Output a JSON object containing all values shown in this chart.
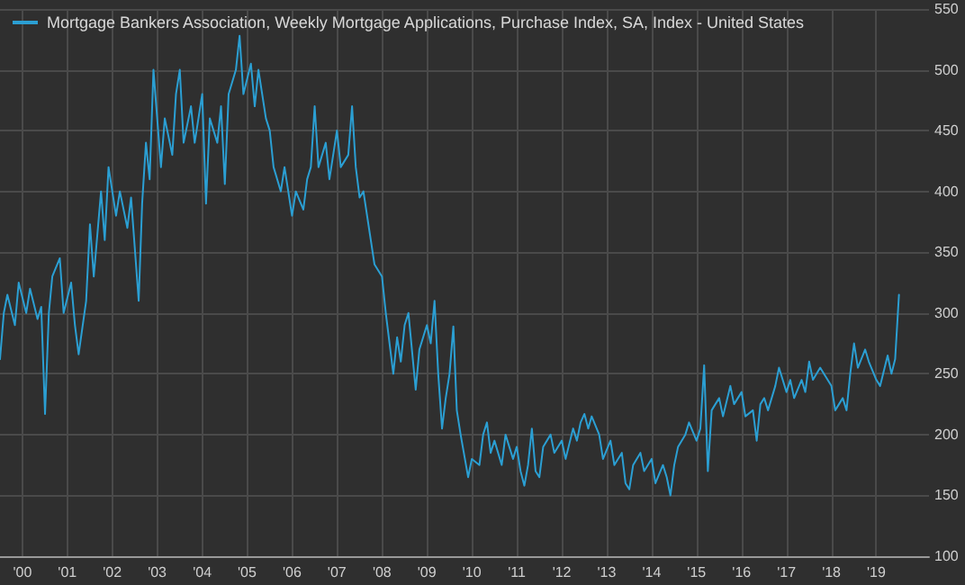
{
  "chart_data": {
    "type": "line",
    "legend": "top left",
    "grid": true,
    "marker": "none",
    "xlim": [
      "2000-01",
      "2020-09"
    ],
    "xticks": [
      {
        "value": "2000-07",
        "label": "'00"
      },
      {
        "value": "2001-07",
        "label": "'01"
      },
      {
        "value": "2002-07",
        "label": "'02"
      },
      {
        "value": "2003-07",
        "label": "'03"
      },
      {
        "value": "2004-07",
        "label": "'04"
      },
      {
        "value": "2005-07",
        "label": "'05"
      },
      {
        "value": "2006-07",
        "label": "'06"
      },
      {
        "value": "2007-07",
        "label": "'07"
      },
      {
        "value": "2008-07",
        "label": "'08"
      },
      {
        "value": "2009-07",
        "label": "'09"
      },
      {
        "value": "2010-07",
        "label": "'10"
      },
      {
        "value": "2011-07",
        "label": "'11"
      },
      {
        "value": "2012-07",
        "label": "'12"
      },
      {
        "value": "2013-07",
        "label": "'13"
      },
      {
        "value": "2014-07",
        "label": "'14"
      },
      {
        "value": "2015-07",
        "label": "'15"
      },
      {
        "value": "2016-07",
        "label": "'16"
      },
      {
        "value": "2017-07",
        "label": "'17"
      },
      {
        "value": "2018-07",
        "label": "'18"
      },
      {
        "value": "2019-07",
        "label": "'19"
      }
    ],
    "ylim": [
      100,
      550
    ],
    "yticks": [
      100,
      150,
      200,
      250,
      300,
      350,
      400,
      450,
      500,
      550
    ],
    "x": [
      "2000-01",
      "2000-02",
      "2000-03",
      "2000-05",
      "2000-06",
      "2000-08",
      "2000-09",
      "2000-11",
      "2000-12",
      "2001-01",
      "2001-02",
      "2001-03",
      "2001-05",
      "2001-06",
      "2001-08",
      "2001-09",
      "2001-10",
      "2001-12",
      "2002-01",
      "2002-02",
      "2002-04",
      "2002-05",
      "2002-06",
      "2002-08",
      "2002-09",
      "2002-11",
      "2002-12",
      "2003-02",
      "2003-03",
      "2003-04",
      "2003-05",
      "2003-06",
      "2003-08",
      "2003-09",
      "2003-11",
      "2003-12",
      "2004-01",
      "2004-02",
      "2004-04",
      "2004-05",
      "2004-07",
      "2004-08",
      "2004-09",
      "2004-11",
      "2004-12",
      "2005-01",
      "2005-02",
      "2005-04",
      "2005-05",
      "2005-06",
      "2005-08",
      "2005-09",
      "2005-10",
      "2005-12",
      "2006-01",
      "2006-02",
      "2006-04",
      "2006-05",
      "2006-07",
      "2006-08",
      "2006-10",
      "2006-11",
      "2006-12",
      "2007-01",
      "2007-02",
      "2007-04",
      "2007-05",
      "2007-07",
      "2007-08",
      "2007-10",
      "2007-11",
      "2007-12",
      "2008-01",
      "2008-02",
      "2008-04",
      "2008-05",
      "2008-07",
      "2008-08",
      "2008-10",
      "2008-11",
      "2008-12",
      "2009-01",
      "2009-02",
      "2009-04",
      "2009-05",
      "2009-07",
      "2009-08",
      "2009-09",
      "2009-10",
      "2009-11",
      "2009-12",
      "2010-01",
      "2010-02",
      "2010-03",
      "2010-04",
      "2010-06",
      "2010-07",
      "2010-09",
      "2010-10",
      "2010-11",
      "2010-12",
      "2011-01",
      "2011-03",
      "2011-04",
      "2011-06",
      "2011-07",
      "2011-08",
      "2011-09",
      "2011-10",
      "2011-11",
      "2011-12",
      "2012-01",
      "2012-02",
      "2012-04",
      "2012-05",
      "2012-07",
      "2012-08",
      "2012-10",
      "2012-11",
      "2012-12",
      "2013-01",
      "2013-02",
      "2013-03",
      "2013-05",
      "2013-06",
      "2013-08",
      "2013-09",
      "2013-11",
      "2013-12",
      "2014-01",
      "2014-02",
      "2014-04",
      "2014-05",
      "2014-07",
      "2014-08",
      "2014-10",
      "2014-11",
      "2014-12",
      "2015-01",
      "2015-02",
      "2015-04",
      "2015-05",
      "2015-07",
      "2015-08",
      "2015-09",
      "2015-10",
      "2015-11",
      "2015-12",
      "2016-01",
      "2016-02",
      "2016-04",
      "2016-05",
      "2016-07",
      "2016-08",
      "2016-10",
      "2016-11",
      "2016-12",
      "2017-01",
      "2017-02",
      "2017-04",
      "2017-05",
      "2017-07",
      "2017-08",
      "2017-09",
      "2017-11",
      "2017-12",
      "2018-01",
      "2018-02",
      "2018-04",
      "2018-05",
      "2018-07",
      "2018-08",
      "2018-10",
      "2018-11",
      "2018-12",
      "2019-01",
      "2019-02",
      "2019-04",
      "2019-05",
      "2019-07",
      "2019-08",
      "2019-10",
      "2019-11",
      "2019-12",
      "2020-01"
    ],
    "series": [
      {
        "name": "Mortgage Bankers Association, Weekly Mortgage Applications, Purchase Index, SA, Index - United States",
        "color": "#2b9fd3",
        "values": [
          262,
          300,
          315,
          290,
          325,
          300,
          320,
          295,
          305,
          217,
          300,
          330,
          345,
          300,
          325,
          290,
          266,
          310,
          373,
          330,
          400,
          360,
          420,
          380,
          400,
          370,
          395,
          310,
          390,
          440,
          410,
          500,
          420,
          460,
          430,
          480,
          500,
          440,
          470,
          440,
          480,
          390,
          460,
          440,
          470,
          406,
          480,
          500,
          528,
          480,
          505,
          470,
          500,
          460,
          450,
          420,
          400,
          420,
          380,
          400,
          385,
          410,
          420,
          470,
          420,
          440,
          410,
          450,
          420,
          430,
          470,
          420,
          395,
          400,
          360,
          340,
          330,
          300,
          250,
          280,
          260,
          290,
          300,
          237,
          270,
          290,
          275,
          310,
          250,
          205,
          230,
          250,
          289,
          220,
          200,
          165,
          180,
          175,
          200,
          210,
          185,
          195,
          175,
          200,
          180,
          190,
          170,
          158,
          175,
          205,
          170,
          165,
          190,
          200,
          185,
          195,
          180,
          205,
          195,
          210,
          217,
          205,
          215,
          200,
          180,
          195,
          175,
          185,
          160,
          155,
          175,
          185,
          170,
          180,
          160,
          175,
          165,
          150,
          175,
          190,
          200,
          210,
          195,
          205,
          257,
          170,
          220,
          225,
          230,
          215,
          240,
          225,
          235,
          215,
          220,
          195,
          225,
          230,
          220,
          240,
          255,
          235,
          245,
          230,
          245,
          235,
          260,
          245,
          255,
          250,
          240,
          220,
          230,
          220,
          250,
          275,
          255,
          270,
          260,
          245,
          240,
          265,
          250,
          262,
          315
        ]
      }
    ]
  }
}
